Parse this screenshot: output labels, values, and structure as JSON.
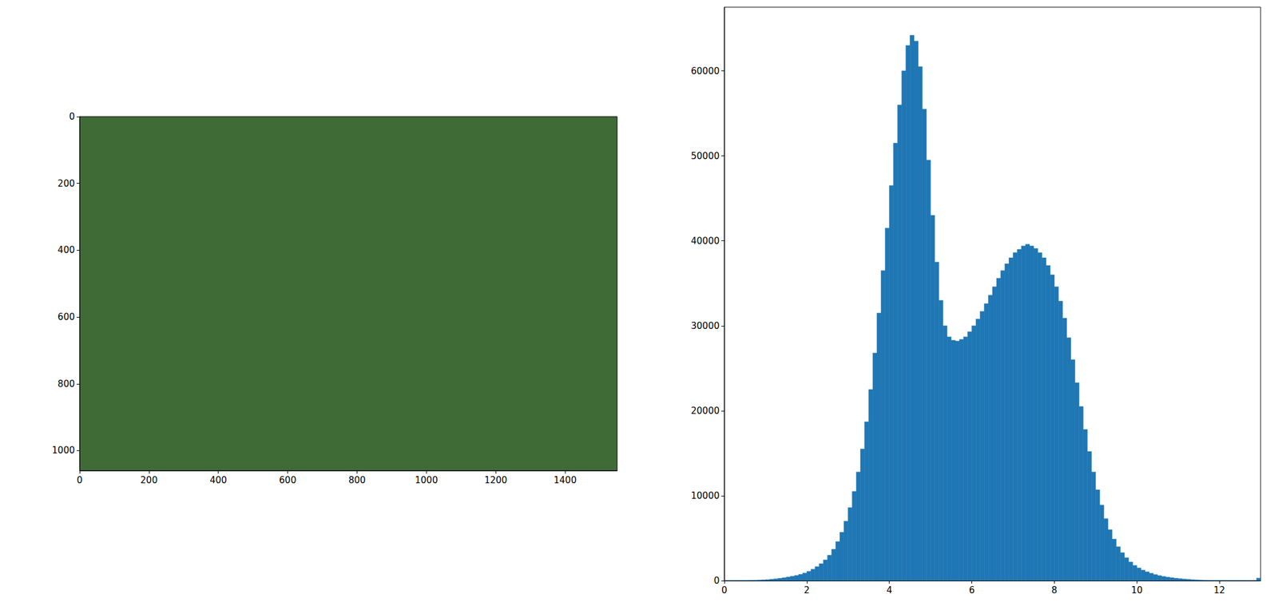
{
  "chart_data": [
    {
      "type": "image",
      "xlim": [
        0,
        1550
      ],
      "ylim": [
        1060,
        0
      ],
      "xticks": [
        0,
        200,
        400,
        600,
        800,
        1000,
        1200,
        1400
      ],
      "yticks": [
        0,
        200,
        400,
        600,
        800,
        1000
      ],
      "grid": false
    },
    {
      "type": "histogram",
      "color": "#1f77b4",
      "bins": [
        0,
        0.1,
        0.2,
        0.3,
        0.4,
        0.5,
        0.6,
        0.7,
        0.8,
        0.9,
        1,
        1.1,
        1.2,
        1.3,
        1.4,
        1.5,
        1.6,
        1.7,
        1.8,
        1.9,
        2,
        2.1,
        2.2,
        2.3,
        2.4,
        2.5,
        2.6,
        2.7,
        2.8,
        2.9,
        3,
        3.1,
        3.2,
        3.3,
        3.4,
        3.5,
        3.6,
        3.7,
        3.8,
        3.9,
        4,
        4.1,
        4.2,
        4.3,
        4.4,
        4.5,
        4.6,
        4.7,
        4.8,
        4.9,
        5,
        5.1,
        5.2,
        5.3,
        5.4,
        5.5,
        5.6,
        5.7,
        5.8,
        5.9,
        6,
        6.1,
        6.2,
        6.3,
        6.4,
        6.5,
        6.6,
        6.7,
        6.8,
        6.9,
        7,
        7.1,
        7.2,
        7.3,
        7.4,
        7.5,
        7.6,
        7.7,
        7.8,
        7.9,
        8,
        8.1,
        8.2,
        8.3,
        8.4,
        8.5,
        8.6,
        8.7,
        8.8,
        8.9,
        9,
        9.1,
        9.2,
        9.3,
        9.4,
        9.5,
        9.6,
        9.7,
        9.8,
        9.9,
        10,
        10.1,
        10.2,
        10.3,
        10.4,
        10.5,
        10.6,
        10.7,
        10.8,
        10.9,
        11,
        11.1,
        11.2,
        11.3,
        11.4,
        11.5,
        11.6,
        11.7,
        11.8,
        11.9,
        12,
        12.1,
        12.2,
        12.3,
        12.4,
        12.5,
        12.6,
        12.7,
        12.8,
        12.9,
        13
      ],
      "counts": [
        0,
        0,
        0,
        10,
        20,
        30,
        40,
        60,
        80,
        100,
        130,
        170,
        220,
        280,
        350,
        430,
        520,
        620,
        750,
        900,
        1100,
        1350,
        1650,
        2000,
        2450,
        3000,
        3700,
        4600,
        5700,
        7000,
        8600,
        10500,
        12800,
        15500,
        18700,
        22500,
        26800,
        31500,
        36500,
        41500,
        46500,
        51500,
        56000,
        60000,
        63000,
        64200,
        63500,
        60500,
        55500,
        49500,
        43000,
        37500,
        33000,
        30000,
        28700,
        28300,
        28200,
        28400,
        28700,
        29300,
        30000,
        30800,
        31700,
        32600,
        33600,
        34600,
        35600,
        36500,
        37300,
        38000,
        38600,
        39000,
        39400,
        39600,
        39400,
        39100,
        38600,
        38000,
        37100,
        36000,
        34600,
        32900,
        30900,
        28600,
        26000,
        23300,
        20500,
        17800,
        15200,
        12800,
        10700,
        8900,
        7300,
        6000,
        4900,
        4000,
        3300,
        2700,
        2200,
        1800,
        1500,
        1250,
        1050,
        870,
        720,
        600,
        500,
        420,
        350,
        290,
        240,
        200,
        160,
        130,
        100,
        80,
        60,
        45,
        35,
        25,
        20,
        15,
        10,
        10,
        5,
        5,
        0,
        0,
        0,
        300
      ],
      "xlim": [
        0,
        13
      ],
      "ylim": [
        0,
        67500
      ],
      "xticks": [
        0,
        2,
        4,
        6,
        8,
        10,
        12
      ],
      "yticks": [
        0,
        10000,
        20000,
        30000,
        40000,
        50000,
        60000
      ],
      "grid": false
    }
  ]
}
